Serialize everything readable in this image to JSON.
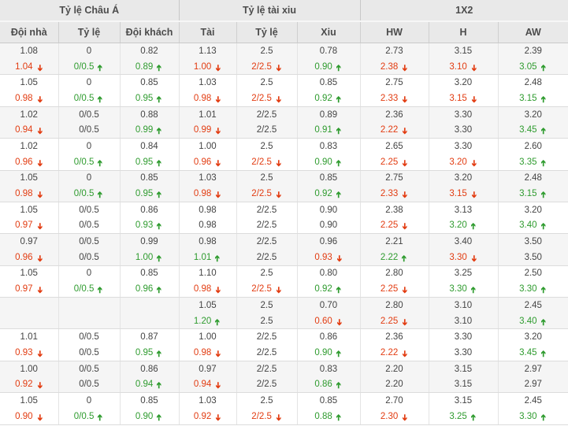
{
  "header": {
    "groups": [
      {
        "label": "Tỷ lệ Châu Á",
        "span": 3
      },
      {
        "label": "Tỷ lệ tài xiu",
        "span": 3
      },
      {
        "label": "1X2",
        "span": 3
      }
    ],
    "columns": [
      "Đội nhà",
      "Tỷ lệ",
      "Đội khách",
      "Tài",
      "Tỷ lệ",
      "Xiu",
      "HW",
      "H",
      "AW"
    ]
  },
  "colors": {
    "up_green": "#2e9b2e",
    "down_red": "#e23b10",
    "text_gray": "#444444",
    "header_bg": "#e9e9e9",
    "shade_row_bg": "#f5f5f5"
  },
  "icons": {
    "up": "arrow-up-icon",
    "down": "arrow-down-icon",
    "glyph": "➔"
  },
  "rows": [
    {
      "open": [
        "1.08",
        "0",
        "0.82",
        "1.13",
        "2.5",
        "0.78",
        "2.73",
        "3.15",
        "2.39"
      ],
      "live": [
        {
          "v": "1.04",
          "dir": "down"
        },
        {
          "v": "0/0.5",
          "dir": "up"
        },
        {
          "v": "0.89",
          "dir": "up"
        },
        {
          "v": "1.00",
          "dir": "down"
        },
        {
          "v": "2/2.5",
          "dir": "down"
        },
        {
          "v": "0.90",
          "dir": "up"
        },
        {
          "v": "2.38",
          "dir": "down"
        },
        {
          "v": "3.10",
          "dir": "down"
        },
        {
          "v": "3.05",
          "dir": "up"
        }
      ]
    },
    {
      "open": [
        "1.05",
        "0",
        "0.85",
        "1.03",
        "2.5",
        "0.85",
        "2.75",
        "3.20",
        "2.48"
      ],
      "live": [
        {
          "v": "0.98",
          "dir": "down"
        },
        {
          "v": "0/0.5",
          "dir": "up"
        },
        {
          "v": "0.95",
          "dir": "up"
        },
        {
          "v": "0.98",
          "dir": "down"
        },
        {
          "v": "2/2.5",
          "dir": "down"
        },
        {
          "v": "0.92",
          "dir": "up"
        },
        {
          "v": "2.33",
          "dir": "down"
        },
        {
          "v": "3.15",
          "dir": "down"
        },
        {
          "v": "3.15",
          "dir": "up"
        }
      ]
    },
    {
      "open": [
        "1.02",
        "0/0.5",
        "0.88",
        "1.01",
        "2/2.5",
        "0.89",
        "2.36",
        "3.30",
        "3.20"
      ],
      "live": [
        {
          "v": "0.94",
          "dir": "down"
        },
        {
          "v": "0/0.5",
          "dir": ""
        },
        {
          "v": "0.99",
          "dir": "up"
        },
        {
          "v": "0.99",
          "dir": "down"
        },
        {
          "v": "2/2.5",
          "dir": ""
        },
        {
          "v": "0.91",
          "dir": "up"
        },
        {
          "v": "2.22",
          "dir": "down"
        },
        {
          "v": "3.30",
          "dir": ""
        },
        {
          "v": "3.45",
          "dir": "up"
        }
      ]
    },
    {
      "open": [
        "1.02",
        "0",
        "0.84",
        "1.00",
        "2.5",
        "0.83",
        "2.65",
        "3.30",
        "2.60"
      ],
      "live": [
        {
          "v": "0.96",
          "dir": "down"
        },
        {
          "v": "0/0.5",
          "dir": "up"
        },
        {
          "v": "0.95",
          "dir": "up"
        },
        {
          "v": "0.96",
          "dir": "down"
        },
        {
          "v": "2/2.5",
          "dir": "down"
        },
        {
          "v": "0.90",
          "dir": "up"
        },
        {
          "v": "2.25",
          "dir": "down"
        },
        {
          "v": "3.20",
          "dir": "down"
        },
        {
          "v": "3.35",
          "dir": "up"
        }
      ]
    },
    {
      "open": [
        "1.05",
        "0",
        "0.85",
        "1.03",
        "2.5",
        "0.85",
        "2.75",
        "3.20",
        "2.48"
      ],
      "live": [
        {
          "v": "0.98",
          "dir": "down"
        },
        {
          "v": "0/0.5",
          "dir": "up"
        },
        {
          "v": "0.95",
          "dir": "up"
        },
        {
          "v": "0.98",
          "dir": "down"
        },
        {
          "v": "2/2.5",
          "dir": "down"
        },
        {
          "v": "0.92",
          "dir": "up"
        },
        {
          "v": "2.33",
          "dir": "down"
        },
        {
          "v": "3.15",
          "dir": "down"
        },
        {
          "v": "3.15",
          "dir": "up"
        }
      ]
    },
    {
      "open": [
        "1.05",
        "0/0.5",
        "0.86",
        "0.98",
        "2/2.5",
        "0.90",
        "2.38",
        "3.13",
        "3.20"
      ],
      "live": [
        {
          "v": "0.97",
          "dir": "down"
        },
        {
          "v": "0/0.5",
          "dir": ""
        },
        {
          "v": "0.93",
          "dir": "up"
        },
        {
          "v": "0.98",
          "dir": ""
        },
        {
          "v": "2/2.5",
          "dir": ""
        },
        {
          "v": "0.90",
          "dir": ""
        },
        {
          "v": "2.25",
          "dir": "down"
        },
        {
          "v": "3.20",
          "dir": "up"
        },
        {
          "v": "3.40",
          "dir": "up"
        }
      ]
    },
    {
      "open": [
        "0.97",
        "0/0.5",
        "0.99",
        "0.98",
        "2/2.5",
        "0.96",
        "2.21",
        "3.40",
        "3.50"
      ],
      "live": [
        {
          "v": "0.96",
          "dir": "down"
        },
        {
          "v": "0/0.5",
          "dir": ""
        },
        {
          "v": "1.00",
          "dir": "up"
        },
        {
          "v": "1.01",
          "dir": "up"
        },
        {
          "v": "2/2.5",
          "dir": ""
        },
        {
          "v": "0.93",
          "dir": "down"
        },
        {
          "v": "2.22",
          "dir": "up"
        },
        {
          "v": "3.30",
          "dir": "down"
        },
        {
          "v": "3.50",
          "dir": ""
        }
      ]
    },
    {
      "open": [
        "1.05",
        "0",
        "0.85",
        "1.10",
        "2.5",
        "0.80",
        "2.80",
        "3.25",
        "2.50"
      ],
      "live": [
        {
          "v": "0.97",
          "dir": "down"
        },
        {
          "v": "0/0.5",
          "dir": "up"
        },
        {
          "v": "0.96",
          "dir": "up"
        },
        {
          "v": "0.98",
          "dir": "down"
        },
        {
          "v": "2/2.5",
          "dir": "down"
        },
        {
          "v": "0.92",
          "dir": "up"
        },
        {
          "v": "2.25",
          "dir": "down"
        },
        {
          "v": "3.30",
          "dir": "up"
        },
        {
          "v": "3.30",
          "dir": "up"
        }
      ]
    },
    {
      "open": [
        "",
        "",
        "",
        "1.05",
        "2.5",
        "0.70",
        "2.80",
        "3.10",
        "2.45"
      ],
      "live": [
        {
          "v": "",
          "dir": ""
        },
        {
          "v": "",
          "dir": ""
        },
        {
          "v": "",
          "dir": ""
        },
        {
          "v": "1.20",
          "dir": "up"
        },
        {
          "v": "2.5",
          "dir": ""
        },
        {
          "v": "0.60",
          "dir": "down"
        },
        {
          "v": "2.25",
          "dir": "down"
        },
        {
          "v": "3.10",
          "dir": ""
        },
        {
          "v": "3.40",
          "dir": "up"
        }
      ]
    },
    {
      "open": [
        "1.01",
        "0/0.5",
        "0.87",
        "1.00",
        "2/2.5",
        "0.86",
        "2.36",
        "3.30",
        "3.20"
      ],
      "live": [
        {
          "v": "0.93",
          "dir": "down"
        },
        {
          "v": "0/0.5",
          "dir": ""
        },
        {
          "v": "0.95",
          "dir": "up"
        },
        {
          "v": "0.98",
          "dir": "down"
        },
        {
          "v": "2/2.5",
          "dir": ""
        },
        {
          "v": "0.90",
          "dir": "up"
        },
        {
          "v": "2.22",
          "dir": "down"
        },
        {
          "v": "3.30",
          "dir": ""
        },
        {
          "v": "3.45",
          "dir": "up"
        }
      ]
    },
    {
      "open": [
        "1.00",
        "0/0.5",
        "0.86",
        "0.97",
        "2/2.5",
        "0.83",
        "2.20",
        "3.15",
        "2.97"
      ],
      "live": [
        {
          "v": "0.92",
          "dir": "down"
        },
        {
          "v": "0/0.5",
          "dir": ""
        },
        {
          "v": "0.94",
          "dir": "up"
        },
        {
          "v": "0.94",
          "dir": "down"
        },
        {
          "v": "2/2.5",
          "dir": ""
        },
        {
          "v": "0.86",
          "dir": "up"
        },
        {
          "v": "2.20",
          "dir": ""
        },
        {
          "v": "3.15",
          "dir": ""
        },
        {
          "v": "2.97",
          "dir": ""
        }
      ]
    },
    {
      "open": [
        "1.05",
        "0",
        "0.85",
        "1.03",
        "2.5",
        "0.85",
        "2.70",
        "3.15",
        "2.45"
      ],
      "live": [
        {
          "v": "0.90",
          "dir": "down"
        },
        {
          "v": "0/0.5",
          "dir": "up"
        },
        {
          "v": "0.90",
          "dir": "up"
        },
        {
          "v": "0.92",
          "dir": "down"
        },
        {
          "v": "2/2.5",
          "dir": "down"
        },
        {
          "v": "0.88",
          "dir": "up"
        },
        {
          "v": "2.30",
          "dir": "down"
        },
        {
          "v": "3.25",
          "dir": "up"
        },
        {
          "v": "3.30",
          "dir": "up"
        }
      ]
    }
  ]
}
